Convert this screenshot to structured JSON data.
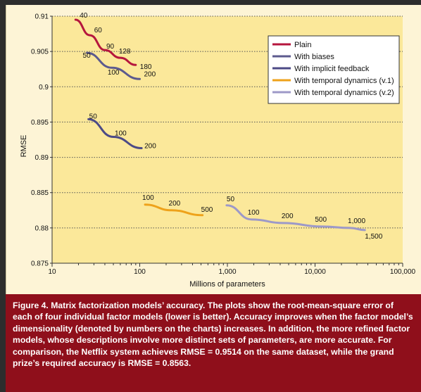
{
  "chart_data": {
    "type": "line",
    "xlabel": "Millions of parameters",
    "ylabel": "RMSE",
    "xscale": "log",
    "xlim": [
      10,
      100000
    ],
    "ylim": [
      0.875,
      0.91
    ],
    "x_ticks": [
      {
        "value": 10,
        "label": "10"
      },
      {
        "value": 100,
        "label": "100"
      },
      {
        "value": 1000,
        "label": "1,000"
      },
      {
        "value": 10000,
        "label": "10,000"
      },
      {
        "value": 100000,
        "label": "100,000"
      }
    ],
    "y_ticks": [
      {
        "value": 0.91,
        "label": "0.91"
      },
      {
        "value": 0.905,
        "label": "0.905"
      },
      {
        "value": 0.9,
        "label": "0.9"
      },
      {
        "value": 0.895,
        "label": "0.895"
      },
      {
        "value": 0.89,
        "label": "0.89"
      },
      {
        "value": 0.885,
        "label": "0.885"
      },
      {
        "value": 0.88,
        "label": "0.88"
      },
      {
        "value": 0.875,
        "label": "0.875"
      }
    ],
    "grid": "horizontal dotted",
    "legend_placement": "top-right",
    "series": [
      {
        "name": "Plain",
        "color": "#b5163d",
        "points": [
          {
            "x": 18.5,
            "y": 0.9095,
            "label": "40"
          },
          {
            "x": 27,
            "y": 0.9073,
            "label": "60"
          },
          {
            "x": 40,
            "y": 0.9052,
            "label": "90"
          },
          {
            "x": 60,
            "y": 0.9041,
            "label": "128"
          },
          {
            "x": 90,
            "y": 0.9031,
            "label": "180"
          }
        ]
      },
      {
        "name": "With biases",
        "color": "#5c5a8e",
        "points": [
          {
            "x": 25,
            "y": 0.9048,
            "label": "50"
          },
          {
            "x": 48,
            "y": 0.9027,
            "label": "100"
          },
          {
            "x": 100,
            "y": 0.9011,
            "label": "200"
          }
        ]
      },
      {
        "name": "With implicit feedback",
        "color": "#4c4a86",
        "points": [
          {
            "x": 26,
            "y": 0.8954,
            "label": "50"
          },
          {
            "x": 50,
            "y": 0.8929,
            "label": "100"
          },
          {
            "x": 105,
            "y": 0.8913,
            "label": "200"
          }
        ]
      },
      {
        "name": "With temporal dynamics (v.1)",
        "color": "#eea21a",
        "points": [
          {
            "x": 115,
            "y": 0.8833,
            "label": "100"
          },
          {
            "x": 230,
            "y": 0.8825,
            "label": "200"
          },
          {
            "x": 520,
            "y": 0.8818,
            "label": "500"
          }
        ]
      },
      {
        "name": "With temporal dynamics (v.2)",
        "color": "#9d99c8",
        "points": [
          {
            "x": 980,
            "y": 0.8832,
            "label": "50"
          },
          {
            "x": 1900,
            "y": 0.8812,
            "label": "100"
          },
          {
            "x": 4300,
            "y": 0.8807,
            "label": "200"
          },
          {
            "x": 12000,
            "y": 0.8802,
            "label": "500"
          },
          {
            "x": 25000,
            "y": 0.88,
            "label": "1,000"
          },
          {
            "x": 37000,
            "y": 0.8797,
            "label": "1,500"
          }
        ]
      }
    ]
  },
  "caption": {
    "heading": "Figure 4. ",
    "text": "Matrix factorization models’ accuracy. The plots show the root-mean-square error of each of four individual factor models (lower is better). Accuracy improves when the factor model’s dimensionality (denoted by numbers on the charts) increases. In addition, the more refined factor models, whose descriptions involve more distinct sets of parameters, are more accurate. For comparison, the Netflix system achieves RMSE = 0.9514 on the same dataset, while the grand prize’s required accuracy is RMSE = 0.8563."
  }
}
